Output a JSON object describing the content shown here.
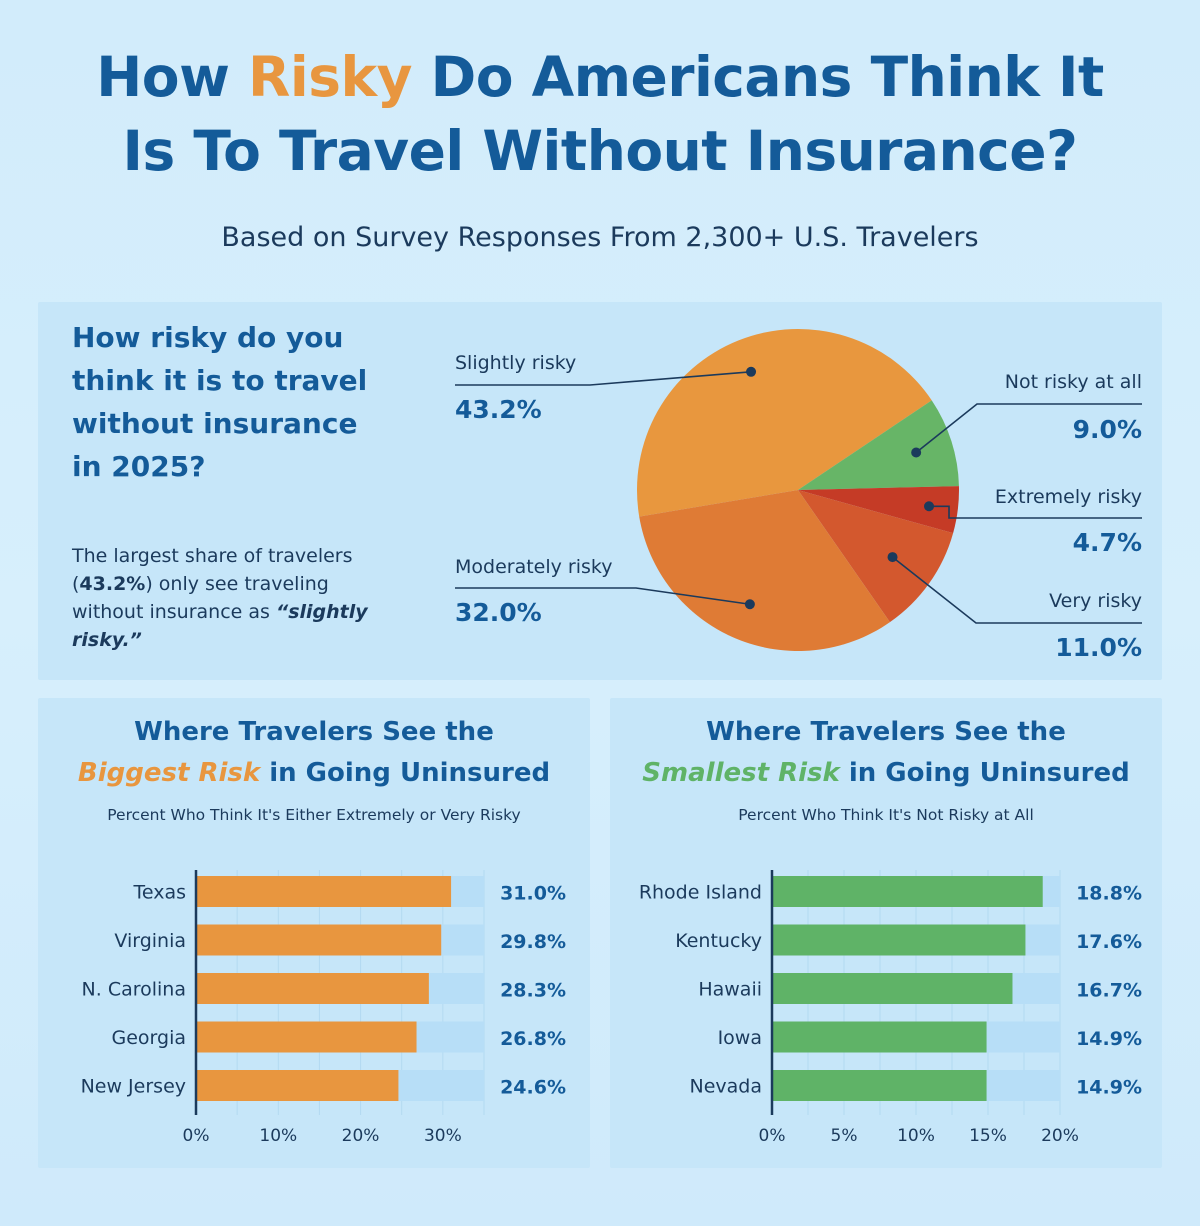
{
  "header": {
    "title_pre": "How ",
    "title_highlight": "Risky",
    "title_line1_post": " Do Americans Think It",
    "title_line2": "Is To Travel Without Insurance?",
    "subtitle": "Based on Survey Responses From 2,300+ U.S. Travelers"
  },
  "question": {
    "title": "How risky do you think it is to travel without insurance in 2025?",
    "text_pre": "The largest share of travelers (",
    "text_bold": "43.2%",
    "text_mid": ") only see traveling without insurance as ",
    "text_italic": "“slightly risky.”"
  },
  "colors": {
    "title_blue": "#145b99",
    "orange": "#e8963f",
    "green": "#5fb367",
    "pie_slightly": "#e8973e",
    "pie_moderately": "#df7b35",
    "pie_very": "#d3582e",
    "pie_extremely": "#c53b26",
    "pie_not": "#67b567"
  },
  "chart_data": [
    {
      "type": "pie",
      "title": "How risky do you think it is to travel without insurance in 2025?",
      "slices": [
        {
          "label": "Slightly risky",
          "value": 43.2,
          "display": "43.2%"
        },
        {
          "label": "Not risky at all",
          "value": 9.0,
          "display": "9.0%"
        },
        {
          "label": "Extremely risky",
          "value": 4.7,
          "display": "4.7%"
        },
        {
          "label": "Very risky",
          "value": 11.0,
          "display": "11.0%"
        },
        {
          "label": "Moderately risky",
          "value": 32.0,
          "display": "32.0%"
        }
      ]
    },
    {
      "type": "bar",
      "orientation": "horizontal",
      "title_line1": "Where Travelers See the",
      "title_emph": "Biggest Risk",
      "title_rest": " in Going Uninsured",
      "subtitle": "Percent Who Think It's Either Extremely or Very Risky",
      "categories": [
        "Texas",
        "Virginia",
        "N. Carolina",
        "Georgia",
        "New Jersey"
      ],
      "values": [
        31.0,
        29.8,
        28.3,
        26.8,
        24.6
      ],
      "labels": [
        "31.0%",
        "29.8%",
        "28.3%",
        "26.8%",
        "24.6%"
      ],
      "xlim": [
        0,
        35
      ],
      "ticks": [
        0,
        10,
        20,
        30
      ],
      "tick_labels": [
        "0%",
        "10%",
        "20%",
        "30%"
      ]
    },
    {
      "type": "bar",
      "orientation": "horizontal",
      "title_line1": "Where Travelers See the",
      "title_emph": "Smallest Risk",
      "title_rest": " in Going Uninsured",
      "subtitle": "Percent Who Think It's Not Risky at All",
      "categories": [
        "Rhode Island",
        "Kentucky",
        "Hawaii",
        "Iowa",
        "Nevada"
      ],
      "values": [
        18.8,
        17.6,
        16.7,
        14.9,
        14.9
      ],
      "labels": [
        "18.8%",
        "17.6%",
        "16.7%",
        "14.9%",
        "14.9%"
      ],
      "xlim": [
        0,
        20
      ],
      "ticks": [
        0,
        5,
        10,
        15,
        20
      ],
      "tick_labels": [
        "0%",
        "5%",
        "10%",
        "15%",
        "20%"
      ]
    }
  ]
}
